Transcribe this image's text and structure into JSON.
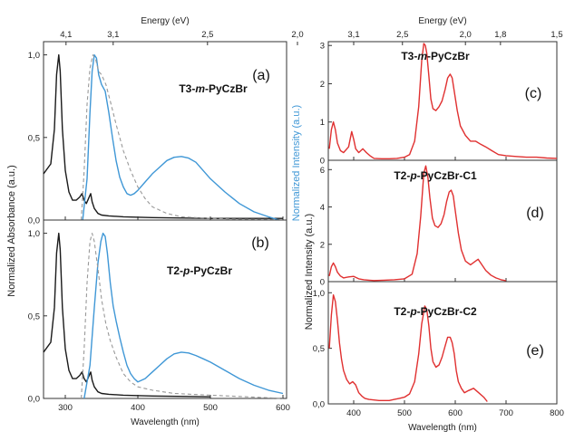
{
  "chart_data": [
    {
      "type": "line",
      "panel": "(a)",
      "compound": "T3-m-PyCzBr",
      "compound_parts": {
        "pre": "T3-",
        "italic": "m",
        "post": "-PyCzBr"
      },
      "xlim": [
        270,
        605
      ],
      "ylim": [
        0,
        1.08
      ],
      "y_ticks": [
        "0,0",
        "0,5",
        "1,0"
      ],
      "top_axis": {
        "label": "Energy (eV)",
        "ticks": [
          "4,1",
          "3,1",
          "2,5",
          "2,0"
        ]
      },
      "series": [
        {
          "color": "#1a1a1a",
          "style": "solid",
          "x": [
            270,
            280,
            285,
            288,
            291,
            293,
            296,
            300,
            305,
            310,
            315,
            320,
            323,
            326,
            329,
            332,
            335,
            337,
            340,
            345,
            350,
            360,
            380,
            420,
            500,
            600
          ],
          "y": [
            0.28,
            0.34,
            0.55,
            0.88,
            1.0,
            0.9,
            0.55,
            0.3,
            0.17,
            0.12,
            0.12,
            0.14,
            0.16,
            0.12,
            0.1,
            0.13,
            0.16,
            0.11,
            0.07,
            0.04,
            0.03,
            0.025,
            0.02,
            0.015,
            0.01,
            0.01
          ]
        },
        {
          "color": "#3f97d6",
          "style": "solid",
          "x": [
            324,
            330,
            334,
            337,
            340,
            343,
            346,
            350,
            355,
            360,
            365,
            370,
            375,
            380,
            385,
            390,
            395,
            400,
            410,
            420,
            430,
            440,
            450,
            460,
            470,
            480,
            490,
            500,
            520,
            540,
            560,
            580,
            595
          ],
          "y": [
            0.0,
            0.25,
            0.65,
            0.9,
            1.0,
            0.98,
            0.88,
            0.82,
            0.78,
            0.65,
            0.5,
            0.36,
            0.26,
            0.2,
            0.16,
            0.15,
            0.16,
            0.18,
            0.23,
            0.28,
            0.32,
            0.36,
            0.38,
            0.385,
            0.375,
            0.35,
            0.3,
            0.25,
            0.17,
            0.1,
            0.05,
            0.02,
            0.0
          ]
        },
        {
          "color": "#999999",
          "style": "dashed",
          "x": [
            322,
            326,
            330,
            334,
            338,
            342,
            346,
            350,
            356,
            362,
            370,
            380,
            390,
            400,
            410,
            420,
            440,
            460,
            500,
            540,
            580,
            600
          ],
          "y": [
            0.0,
            0.3,
            0.7,
            0.92,
            1.0,
            0.97,
            0.9,
            0.88,
            0.82,
            0.72,
            0.58,
            0.42,
            0.3,
            0.2,
            0.13,
            0.08,
            0.04,
            0.02,
            0.01,
            0.005,
            0.003,
            0.0
          ]
        }
      ]
    },
    {
      "type": "line",
      "panel": "(b)",
      "compound": "T2-p-PyCzBr",
      "compound_parts": {
        "pre": "T2-",
        "italic": "p",
        "post": "-PyCzBr"
      },
      "xlim": [
        270,
        605
      ],
      "ylim": [
        0,
        1.08
      ],
      "y_ticks": [
        "0,0",
        "0,5",
        "1,0"
      ],
      "x_ticks": [
        "300",
        "400",
        "500",
        "600"
      ],
      "xlabel": "Wavelength (nm)",
      "series": [
        {
          "color": "#1a1a1a",
          "style": "solid",
          "x": [
            270,
            280,
            285,
            288,
            291,
            293,
            296,
            300,
            305,
            310,
            315,
            320,
            323,
            326,
            329,
            332,
            335,
            337,
            340,
            345,
            350,
            360,
            380,
            420,
            500
          ],
          "y": [
            0.28,
            0.34,
            0.55,
            0.88,
            1.0,
            0.9,
            0.55,
            0.3,
            0.17,
            0.12,
            0.12,
            0.14,
            0.16,
            0.12,
            0.1,
            0.13,
            0.16,
            0.11,
            0.07,
            0.04,
            0.03,
            0.025,
            0.02,
            0.015,
            0.01
          ]
        },
        {
          "color": "#3f97d6",
          "style": "solid",
          "x": [
            326,
            334,
            340,
            345,
            349,
            352,
            355,
            358,
            362,
            366,
            370,
            375,
            380,
            385,
            390,
            395,
            400,
            410,
            420,
            430,
            440,
            450,
            460,
            470,
            480,
            490,
            500,
            520,
            540,
            560,
            580,
            600
          ],
          "y": [
            0.0,
            0.2,
            0.55,
            0.82,
            0.95,
            1.0,
            0.98,
            0.88,
            0.7,
            0.56,
            0.47,
            0.37,
            0.28,
            0.2,
            0.15,
            0.12,
            0.1,
            0.12,
            0.16,
            0.2,
            0.24,
            0.27,
            0.28,
            0.275,
            0.26,
            0.24,
            0.22,
            0.17,
            0.12,
            0.08,
            0.05,
            0.03
          ]
        },
        {
          "color": "#999999",
          "style": "dashed",
          "x": [
            322,
            326,
            330,
            334,
            337,
            340,
            343,
            346,
            350,
            356,
            362,
            370,
            380,
            390,
            400,
            420,
            450,
            500,
            550,
            600
          ],
          "y": [
            0.0,
            0.3,
            0.7,
            0.95,
            1.0,
            0.95,
            0.85,
            0.75,
            0.6,
            0.45,
            0.35,
            0.25,
            0.15,
            0.1,
            0.07,
            0.05,
            0.03,
            0.02,
            0.01,
            0.0
          ]
        }
      ]
    },
    {
      "type": "line",
      "panel": "(c)",
      "compound": "T3-m-PyCzBr",
      "compound_parts": {
        "pre": "T3-",
        "italic": "m",
        "post": "-PyCzBr"
      },
      "xlim": [
        350,
        800
      ],
      "ylim": [
        0,
        3.1
      ],
      "y_ticks": [
        "0",
        "1",
        "2",
        "3"
      ],
      "top_axis": {
        "label": "Energy (eV)",
        "ticks": [
          "3,1",
          "2,5",
          "2,0",
          "1,8",
          "1,5"
        ]
      },
      "series": [
        {
          "color": "#e03030",
          "style": "solid",
          "x": [
            352,
            356,
            360,
            364,
            368,
            374,
            380,
            390,
            396,
            400,
            404,
            410,
            418,
            425,
            432,
            440,
            455,
            470,
            485,
            500,
            510,
            520,
            528,
            534,
            538,
            541,
            544,
            548,
            552,
            556,
            562,
            568,
            574,
            580,
            585,
            590,
            594,
            598,
            604,
            610,
            620,
            630,
            640,
            650,
            660,
            672,
            685,
            700,
            720,
            740,
            760,
            780,
            800
          ],
          "y": [
            0.3,
            0.8,
            1.0,
            0.8,
            0.45,
            0.25,
            0.2,
            0.35,
            0.75,
            0.55,
            0.3,
            0.2,
            0.3,
            0.2,
            0.12,
            0.05,
            0.04,
            0.04,
            0.05,
            0.08,
            0.15,
            0.5,
            1.4,
            2.6,
            3.05,
            3.0,
            2.8,
            2.2,
            1.6,
            1.35,
            1.3,
            1.4,
            1.55,
            1.85,
            2.15,
            2.25,
            2.15,
            1.8,
            1.3,
            0.9,
            0.65,
            0.5,
            0.5,
            0.42,
            0.35,
            0.25,
            0.15,
            0.12,
            0.1,
            0.08,
            0.08,
            0.06,
            0.05
          ]
        }
      ]
    },
    {
      "type": "line",
      "panel": "(d)",
      "compound": "T2-p-PyCzBr-C1",
      "compound_parts": {
        "pre": "T2-",
        "italic": "p",
        "post": "-PyCzBr-C1"
      },
      "xlim": [
        350,
        800
      ],
      "ylim": [
        0,
        6.5
      ],
      "y_ticks": [
        "0",
        "2",
        "4",
        "6"
      ],
      "series": [
        {
          "color": "#e03030",
          "style": "solid",
          "x": [
            352,
            356,
            360,
            364,
            368,
            374,
            380,
            390,
            400,
            410,
            420,
            430,
            440,
            460,
            480,
            500,
            515,
            525,
            532,
            538,
            542,
            546,
            550,
            555,
            560,
            566,
            572,
            578,
            583,
            588,
            592,
            596,
            600,
            606,
            612,
            620,
            630,
            640,
            645,
            650,
            660,
            670,
            680,
            690,
            700
          ],
          "y": [
            0.3,
            0.8,
            1.0,
            0.8,
            0.5,
            0.3,
            0.2,
            0.25,
            0.28,
            0.15,
            0.1,
            0.08,
            0.06,
            0.08,
            0.1,
            0.15,
            0.4,
            1.5,
            3.5,
            5.8,
            6.2,
            5.6,
            4.5,
            3.4,
            3.0,
            2.9,
            3.1,
            3.6,
            4.3,
            4.8,
            4.9,
            4.6,
            3.8,
            2.6,
            1.7,
            1.1,
            0.9,
            1.1,
            1.2,
            1.0,
            0.6,
            0.35,
            0.2,
            0.1,
            0.05
          ]
        }
      ]
    },
    {
      "type": "line",
      "panel": "(e)",
      "compound": "T2-p-PyCzBr-C2",
      "compound_parts": {
        "pre": "T2-",
        "italic": "p",
        "post": "-PyCzBr-C2"
      },
      "xlim": [
        350,
        800
      ],
      "ylim": [
        0,
        1.1
      ],
      "y_ticks": [
        "0,0",
        "0,5",
        "1,0"
      ],
      "x_ticks": [
        "400",
        "500",
        "600",
        "700",
        "800"
      ],
      "xlabel": "Wavelength (nm)",
      "series": [
        {
          "color": "#e03030",
          "style": "solid",
          "x": [
            352,
            356,
            360,
            364,
            368,
            372,
            376,
            380,
            386,
            392,
            398,
            404,
            410,
            416,
            422,
            430,
            440,
            450,
            460,
            470,
            480,
            490,
            500,
            510,
            520,
            528,
            534,
            540,
            544,
            548,
            552,
            556,
            562,
            568,
            574,
            580,
            585,
            590,
            594,
            598,
            602,
            606,
            612,
            618,
            626,
            636,
            646,
            656,
            663
          ],
          "y": [
            0.5,
            0.8,
            0.98,
            0.92,
            0.75,
            0.55,
            0.4,
            0.3,
            0.22,
            0.18,
            0.2,
            0.17,
            0.1,
            0.07,
            0.05,
            0.04,
            0.035,
            0.03,
            0.03,
            0.03,
            0.04,
            0.05,
            0.06,
            0.09,
            0.2,
            0.45,
            0.72,
            0.88,
            0.85,
            0.7,
            0.5,
            0.38,
            0.33,
            0.35,
            0.42,
            0.52,
            0.6,
            0.6,
            0.55,
            0.45,
            0.3,
            0.2,
            0.14,
            0.1,
            0.12,
            0.14,
            0.1,
            0.06,
            0.02
          ]
        }
      ]
    }
  ],
  "shared_labels": {
    "left_ylabel": "Normalized Absorbance (a.u.)",
    "middle_ylabel_blue": "Normalized Intensity (a.u.)",
    "middle_ylabel": "Normalized Intensity (a.u.)"
  },
  "colors": {
    "absorbance": "#1a1a1a",
    "emission_blue": "#3f97d6",
    "dashed": "#999999",
    "emission_red": "#e03030"
  }
}
